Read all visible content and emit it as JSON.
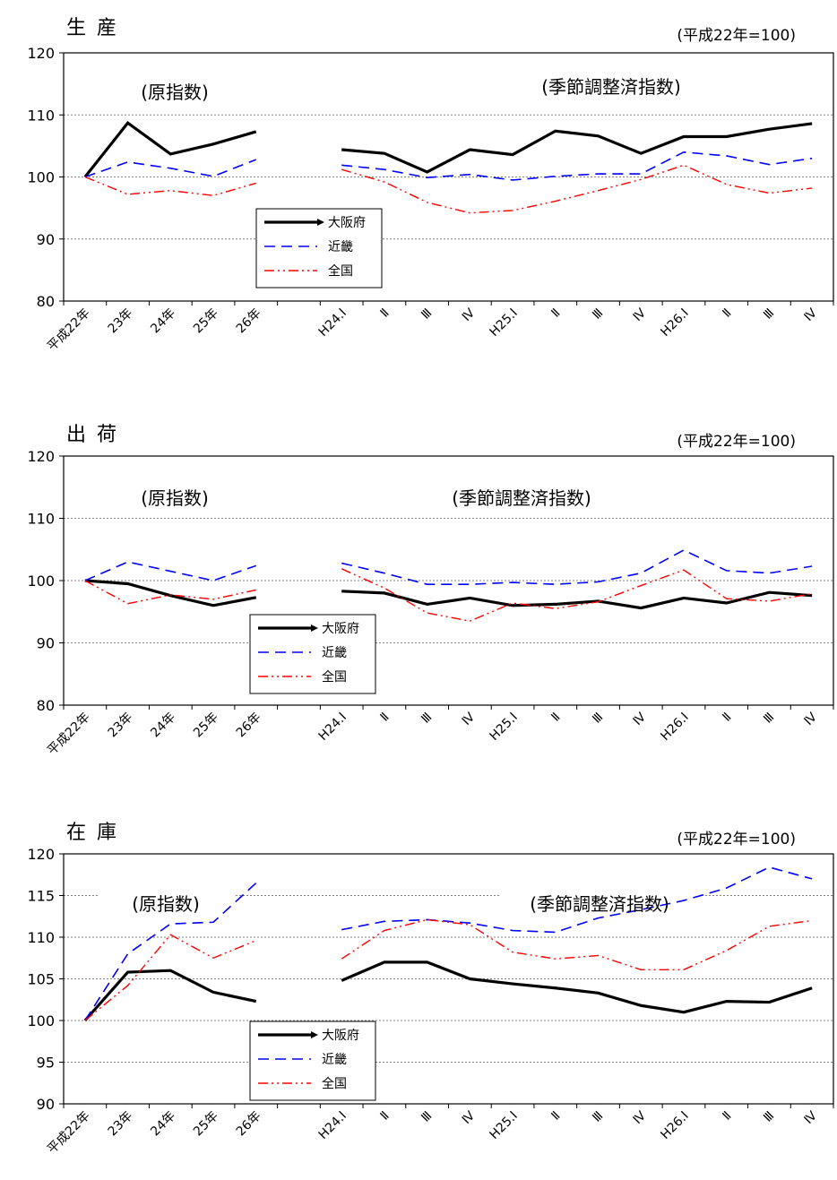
{
  "x_labels": [
    "平成22年",
    "23年",
    "24年",
    "25年",
    "26年",
    "",
    "H24.Ⅰ",
    "Ⅱ",
    "Ⅲ",
    "Ⅳ",
    "H25.Ⅰ",
    "Ⅱ",
    "Ⅲ",
    "Ⅳ",
    "H26.Ⅰ",
    "Ⅱ",
    "Ⅲ",
    "Ⅳ"
  ],
  "legend": [
    "大阪府",
    "近畿",
    "全国"
  ],
  "colors": {
    "osaka": "#000000",
    "kinki": "#0000ff",
    "zenkoku": "#ff0000",
    "grid": "#808080",
    "axis": "#000000"
  },
  "chart_data": [
    {
      "type": "line",
      "title": "生産",
      "base_note": "(平成22年=100)",
      "caption_raw": "(原指数)",
      "caption_sa": "(季節調整済指数)",
      "ylim": [
        80,
        120
      ],
      "yticks": [
        80,
        90,
        100,
        110,
        120
      ],
      "series": [
        {
          "name": "大阪府",
          "raw": [
            100,
            108.7,
            103.7,
            105.3,
            107.3
          ],
          "sa": [
            104.4,
            103.8,
            100.8,
            104.4,
            103.6,
            107.4,
            106.6,
            103.8,
            106.5,
            106.5,
            107.7,
            108.6
          ]
        },
        {
          "name": "近畿",
          "raw": [
            100,
            102.4,
            101.4,
            100.1,
            102.8
          ],
          "sa": [
            101.9,
            101.2,
            99.9,
            100.4,
            99.5,
            100.1,
            100.5,
            100.5,
            104.0,
            103.4,
            102.0,
            103.0
          ]
        },
        {
          "name": "全国",
          "raw": [
            100,
            97.2,
            97.8,
            97.0,
            99.0
          ],
          "sa": [
            101.2,
            99.2,
            95.9,
            94.2,
            94.6,
            96.1,
            97.8,
            99.6,
            101.9,
            98.8,
            97.4,
            98.2
          ]
        }
      ]
    },
    {
      "type": "line",
      "title": "出荷",
      "base_note": "(平成22年=100)",
      "caption_raw": "(原指数)",
      "caption_sa": "(季節調整済指数)",
      "ylim": [
        80,
        120
      ],
      "yticks": [
        80,
        90,
        100,
        110,
        120
      ],
      "series": [
        {
          "name": "大阪府",
          "raw": [
            100,
            99.5,
            97.6,
            96.0,
            97.3
          ],
          "sa": [
            98.3,
            98.0,
            96.2,
            97.2,
            96.0,
            96.2,
            96.7,
            95.6,
            97.2,
            96.4,
            98.1,
            97.6
          ]
        },
        {
          "name": "近畿",
          "raw": [
            100,
            103.0,
            101.5,
            100.0,
            102.4
          ],
          "sa": [
            102.8,
            101.2,
            99.4,
            99.4,
            99.7,
            99.4,
            99.8,
            101.2,
            104.9,
            101.6,
            101.2,
            102.3
          ]
        },
        {
          "name": "全国",
          "raw": [
            100,
            96.3,
            97.7,
            97.0,
            98.5
          ],
          "sa": [
            101.9,
            98.8,
            94.8,
            93.5,
            96.4,
            95.5,
            96.6,
            99.2,
            101.7,
            97.1,
            96.7,
            97.9
          ]
        }
      ]
    },
    {
      "type": "line",
      "title": "在庫",
      "base_note": "(平成22年=100)",
      "caption_raw": "(原指数)",
      "caption_sa": "(季節調整済指数)",
      "ylim": [
        90,
        120
      ],
      "yticks": [
        90,
        95,
        100,
        105,
        110,
        115,
        120
      ],
      "series": [
        {
          "name": "大阪府",
          "raw": [
            100,
            105.8,
            106.0,
            103.4,
            102.3
          ],
          "sa": [
            104.8,
            107.0,
            107.0,
            105.0,
            104.4,
            103.9,
            103.3,
            101.8,
            101.0,
            102.3,
            102.2,
            103.9
          ]
        },
        {
          "name": "近畿",
          "raw": [
            100,
            108.0,
            111.6,
            111.8,
            116.5
          ],
          "sa": [
            110.9,
            111.9,
            112.1,
            111.7,
            110.8,
            110.6,
            112.3,
            113.3,
            114.4,
            115.9,
            118.4,
            117.0
          ]
        },
        {
          "name": "全国",
          "raw": [
            100,
            104.2,
            110.3,
            107.5,
            109.6
          ],
          "sa": [
            107.4,
            110.8,
            112.1,
            111.5,
            108.2,
            107.4,
            107.8,
            106.1,
            106.1,
            108.4,
            111.3,
            112.0
          ]
        }
      ]
    }
  ]
}
